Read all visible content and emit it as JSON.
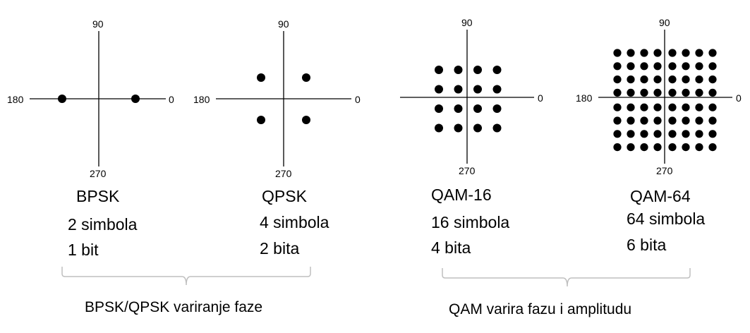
{
  "diagrams": [
    {
      "id": "bpsk",
      "axis_labels": {
        "top": "90",
        "left": "180",
        "right": "0",
        "bottom": "270"
      },
      "name": "BPSK",
      "symbols": "2 simbola",
      "bits": "1 bit",
      "points": [
        [
          -1,
          0
        ],
        [
          1,
          0
        ]
      ]
    },
    {
      "id": "qpsk",
      "axis_labels": {
        "top": "90",
        "left": "180",
        "right": "0",
        "bottom": "270"
      },
      "name": "QPSK",
      "symbols": "4 simbola",
      "bits": "2 bita",
      "points": [
        [
          -1,
          1
        ],
        [
          1,
          1
        ],
        [
          -1,
          -1
        ],
        [
          1,
          -1
        ]
      ]
    },
    {
      "id": "qam16",
      "axis_labels": {
        "top": "90",
        "right": "0",
        "bottom": "270"
      },
      "name": "QAM-16",
      "symbols": "16 simbola",
      "bits": "4 bita",
      "grid": 4
    },
    {
      "id": "qam64",
      "axis_labels": {
        "top": "90",
        "left": "180",
        "right": "0",
        "bottom": "270"
      },
      "name": "QAM-64",
      "symbols": "64 simbola",
      "bits": "6 bita",
      "grid": 8
    }
  ],
  "groups": [
    {
      "caption": "BPSK/QPSK variranje faze"
    },
    {
      "caption": "QAM varira fazu i amplitudu"
    }
  ],
  "colors": {
    "ink": "#000000",
    "bracket": "#bfbfbf",
    "background": "#ffffff"
  }
}
